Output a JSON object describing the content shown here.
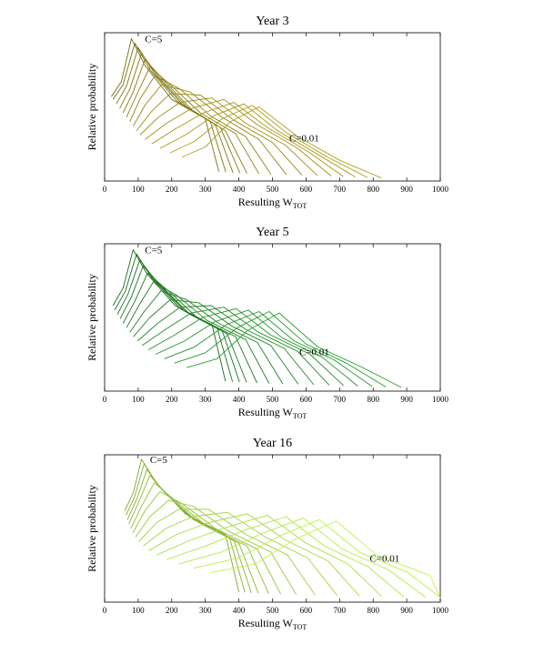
{
  "chart_data": [
    {
      "type": "line",
      "title": "Year 3",
      "xlabel": "Resulting W",
      "xlabel_sub": "TOT",
      "ylabel": "Relative probability",
      "xlim": [
        0,
        1000
      ],
      "xticks": [
        "0",
        "100",
        "200",
        "300",
        "400",
        "500",
        "600",
        "700",
        "800",
        "900",
        "1000"
      ],
      "grid": false,
      "color": "#9a8a14",
      "annotations": [
        {
          "text": "C=5",
          "x": 120,
          "y": 0.96
        },
        {
          "text": "C=0.01",
          "x": 550,
          "y": 0.29
        }
      ],
      "series_offset": 0.035,
      "series": [
        {
          "x": [
            20,
            50,
            80,
            120,
            200,
            300
          ],
          "values": [
            0.57,
            0.67,
            0.96,
            0.78,
            0.55,
            0.42
          ]
        },
        {
          "x": [
            25,
            55,
            90,
            135,
            215,
            315
          ],
          "values": [
            0.55,
            0.65,
            0.93,
            0.75,
            0.54,
            0.4
          ]
        },
        {
          "x": [
            35,
            65,
            100,
            150,
            230,
            330
          ],
          "values": [
            0.52,
            0.64,
            0.9,
            0.72,
            0.52,
            0.38
          ]
        },
        {
          "x": [
            45,
            75,
            110,
            165,
            245,
            345
          ],
          "values": [
            0.49,
            0.62,
            0.86,
            0.69,
            0.5,
            0.36
          ]
        },
        {
          "x": [
            55,
            85,
            120,
            180,
            260,
            360
          ],
          "values": [
            0.46,
            0.6,
            0.82,
            0.67,
            0.48,
            0.34
          ]
        },
        {
          "x": [
            65,
            95,
            135,
            200,
            285,
            390
          ],
          "values": [
            0.43,
            0.58,
            0.77,
            0.64,
            0.46,
            0.32
          ]
        },
        {
          "x": [
            75,
            105,
            150,
            225,
            315,
            420
          ],
          "values": [
            0.4,
            0.55,
            0.71,
            0.62,
            0.44,
            0.3
          ]
        },
        {
          "x": [
            85,
            120,
            170,
            255,
            350,
            460
          ],
          "values": [
            0.37,
            0.51,
            0.65,
            0.6,
            0.43,
            0.28
          ]
        },
        {
          "x": [
            95,
            140,
            195,
            285,
            385,
            500
          ],
          "values": [
            0.34,
            0.47,
            0.59,
            0.58,
            0.41,
            0.26
          ]
        },
        {
          "x": [
            105,
            160,
            225,
            320,
            420,
            540
          ],
          "values": [
            0.31,
            0.43,
            0.53,
            0.56,
            0.39,
            0.24
          ]
        },
        {
          "x": [
            120,
            185,
            260,
            355,
            455,
            575
          ],
          "values": [
            0.28,
            0.39,
            0.49,
            0.55,
            0.38,
            0.22
          ]
        },
        {
          "x": [
            140,
            210,
            295,
            385,
            485,
            605
          ],
          "values": [
            0.25,
            0.35,
            0.46,
            0.53,
            0.36,
            0.2
          ]
        },
        {
          "x": [
            165,
            240,
            325,
            415,
            515,
            635
          ],
          "values": [
            0.22,
            0.31,
            0.44,
            0.52,
            0.34,
            0.18
          ]
        },
        {
          "x": [
            195,
            270,
            350,
            440,
            545,
            665
          ],
          "values": [
            0.19,
            0.27,
            0.42,
            0.51,
            0.32,
            0.16
          ]
        },
        {
          "x": [
            230,
            300,
            375,
            460,
            575,
            700
          ],
          "values": [
            0.16,
            0.23,
            0.4,
            0.5,
            0.3,
            0.14
          ]
        }
      ]
    },
    {
      "type": "line",
      "title": "Year 5",
      "xlabel": "Resulting W",
      "xlabel_sub": "TOT",
      "ylabel": "Relative probability",
      "xlim": [
        0,
        1000
      ],
      "xticks": [
        "0",
        "100",
        "200",
        "300",
        "400",
        "500",
        "600",
        "700",
        "800",
        "900",
        "1000"
      ],
      "grid": false,
      "color": "#1f8a24",
      "annotations": [
        {
          "text": "C=5",
          "x": 120,
          "y": 0.96
        },
        {
          "text": "C=0.01",
          "x": 580,
          "y": 0.27
        }
      ],
      "series_offset": 0.035,
      "series": [
        {
          "x": [
            25,
            55,
            85,
            125,
            210,
            320
          ],
          "values": [
            0.58,
            0.7,
            0.96,
            0.8,
            0.58,
            0.45
          ]
        },
        {
          "x": [
            30,
            62,
            95,
            140,
            225,
            335
          ],
          "values": [
            0.55,
            0.68,
            0.93,
            0.77,
            0.56,
            0.43
          ]
        },
        {
          "x": [
            38,
            70,
            105,
            155,
            240,
            350
          ],
          "values": [
            0.52,
            0.66,
            0.89,
            0.74,
            0.54,
            0.41
          ]
        },
        {
          "x": [
            46,
            80,
            115,
            170,
            255,
            365
          ],
          "values": [
            0.49,
            0.64,
            0.85,
            0.71,
            0.52,
            0.39
          ]
        },
        {
          "x": [
            55,
            90,
            128,
            190,
            275,
            390
          ],
          "values": [
            0.46,
            0.61,
            0.8,
            0.68,
            0.5,
            0.37
          ]
        },
        {
          "x": [
            65,
            102,
            145,
            215,
            305,
            420
          ],
          "values": [
            0.43,
            0.58,
            0.74,
            0.65,
            0.48,
            0.35
          ]
        },
        {
          "x": [
            75,
            118,
            168,
            245,
            340,
            455
          ],
          "values": [
            0.4,
            0.54,
            0.68,
            0.62,
            0.46,
            0.33
          ]
        },
        {
          "x": [
            86,
            135,
            195,
            280,
            380,
            495
          ],
          "values": [
            0.37,
            0.5,
            0.62,
            0.6,
            0.44,
            0.31
          ]
        },
        {
          "x": [
            98,
            158,
            225,
            318,
            420,
            535
          ],
          "values": [
            0.34,
            0.46,
            0.57,
            0.58,
            0.42,
            0.29
          ]
        },
        {
          "x": [
            112,
            182,
            258,
            355,
            458,
            575
          ],
          "values": [
            0.31,
            0.42,
            0.53,
            0.57,
            0.4,
            0.27
          ]
        },
        {
          "x": [
            130,
            208,
            292,
            392,
            495,
            612
          ],
          "values": [
            0.28,
            0.38,
            0.5,
            0.56,
            0.38,
            0.25
          ]
        },
        {
          "x": [
            152,
            238,
            328,
            428,
            530,
            648
          ],
          "values": [
            0.25,
            0.34,
            0.47,
            0.55,
            0.36,
            0.23
          ]
        },
        {
          "x": [
            178,
            268,
            362,
            460,
            565,
            685
          ],
          "values": [
            0.22,
            0.3,
            0.45,
            0.54,
            0.34,
            0.21
          ]
        },
        {
          "x": [
            208,
            300,
            395,
            490,
            600,
            720
          ],
          "values": [
            0.19,
            0.26,
            0.43,
            0.54,
            0.32,
            0.19
          ]
        },
        {
          "x": [
            245,
            335,
            425,
            520,
            635,
            760
          ],
          "values": [
            0.16,
            0.22,
            0.41,
            0.53,
            0.3,
            0.17
          ]
        }
      ]
    },
    {
      "type": "line",
      "title": "Year 16",
      "xlabel": "Resulting W",
      "xlabel_sub": "TOT",
      "ylabel": "Relative probability",
      "xlim": [
        0,
        1000
      ],
      "xticks": [
        "0",
        "100",
        "200",
        "300",
        "400",
        "500",
        "600",
        "700",
        "800",
        "900",
        "1000"
      ],
      "grid": false,
      "color": "#a3d43c",
      "annotations": [
        {
          "text": "C=5",
          "x": 135,
          "y": 0.97
        },
        {
          "text": "C=0.01",
          "x": 790,
          "y": 0.3
        }
      ],
      "series_offset": 0.035,
      "series": [
        {
          "x": [
            60,
            85,
            110,
            150,
            240,
            360
          ],
          "values": [
            0.62,
            0.74,
            0.97,
            0.82,
            0.6,
            0.46
          ]
        },
        {
          "x": [
            64,
            90,
            118,
            160,
            252,
            372
          ],
          "values": [
            0.59,
            0.72,
            0.94,
            0.79,
            0.58,
            0.44
          ]
        },
        {
          "x": [
            68,
            96,
            126,
            172,
            265,
            385
          ],
          "values": [
            0.56,
            0.7,
            0.9,
            0.76,
            0.56,
            0.42
          ]
        },
        {
          "x": [
            72,
            102,
            135,
            185,
            280,
            400
          ],
          "values": [
            0.53,
            0.68,
            0.86,
            0.73,
            0.54,
            0.4
          ]
        },
        {
          "x": [
            78,
            110,
            148,
            205,
            302,
            425
          ],
          "values": [
            0.5,
            0.65,
            0.81,
            0.7,
            0.52,
            0.38
          ]
        },
        {
          "x": [
            84,
            120,
            165,
            230,
            330,
            455
          ],
          "values": [
            0.47,
            0.62,
            0.75,
            0.67,
            0.5,
            0.36
          ]
        },
        {
          "x": [
            92,
            135,
            190,
            265,
            370,
            495
          ],
          "values": [
            0.44,
            0.58,
            0.69,
            0.65,
            0.48,
            0.34
          ]
        },
        {
          "x": [
            102,
            155,
            222,
            310,
            420,
            545
          ],
          "values": [
            0.41,
            0.54,
            0.63,
            0.63,
            0.46,
            0.32
          ]
        },
        {
          "x": [
            115,
            182,
            262,
            365,
            480,
            605
          ],
          "values": [
            0.38,
            0.5,
            0.58,
            0.61,
            0.44,
            0.3
          ]
        },
        {
          "x": [
            132,
            215,
            310,
            425,
            540,
            665
          ],
          "values": [
            0.35,
            0.46,
            0.54,
            0.6,
            0.42,
            0.28
          ]
        },
        {
          "x": [
            155,
            255,
            365,
            485,
            600,
            725
          ],
          "values": [
            0.32,
            0.42,
            0.51,
            0.59,
            0.4,
            0.26
          ]
        },
        {
          "x": [
            185,
            300,
            420,
            540,
            655,
            785
          ],
          "values": [
            0.29,
            0.38,
            0.49,
            0.58,
            0.38,
            0.24
          ]
        },
        {
          "x": [
            222,
            348,
            472,
            592,
            708,
            845
          ],
          "values": [
            0.26,
            0.34,
            0.47,
            0.57,
            0.36,
            0.22
          ]
        },
        {
          "x": [
            265,
            398,
            522,
            640,
            758,
            905
          ],
          "values": [
            0.23,
            0.3,
            0.45,
            0.56,
            0.34,
            0.2
          ]
        },
        {
          "x": [
            315,
            450,
            570,
            690,
            810,
            970
          ],
          "values": [
            0.2,
            0.26,
            0.43,
            0.55,
            0.32,
            0.18
          ]
        }
      ]
    }
  ]
}
